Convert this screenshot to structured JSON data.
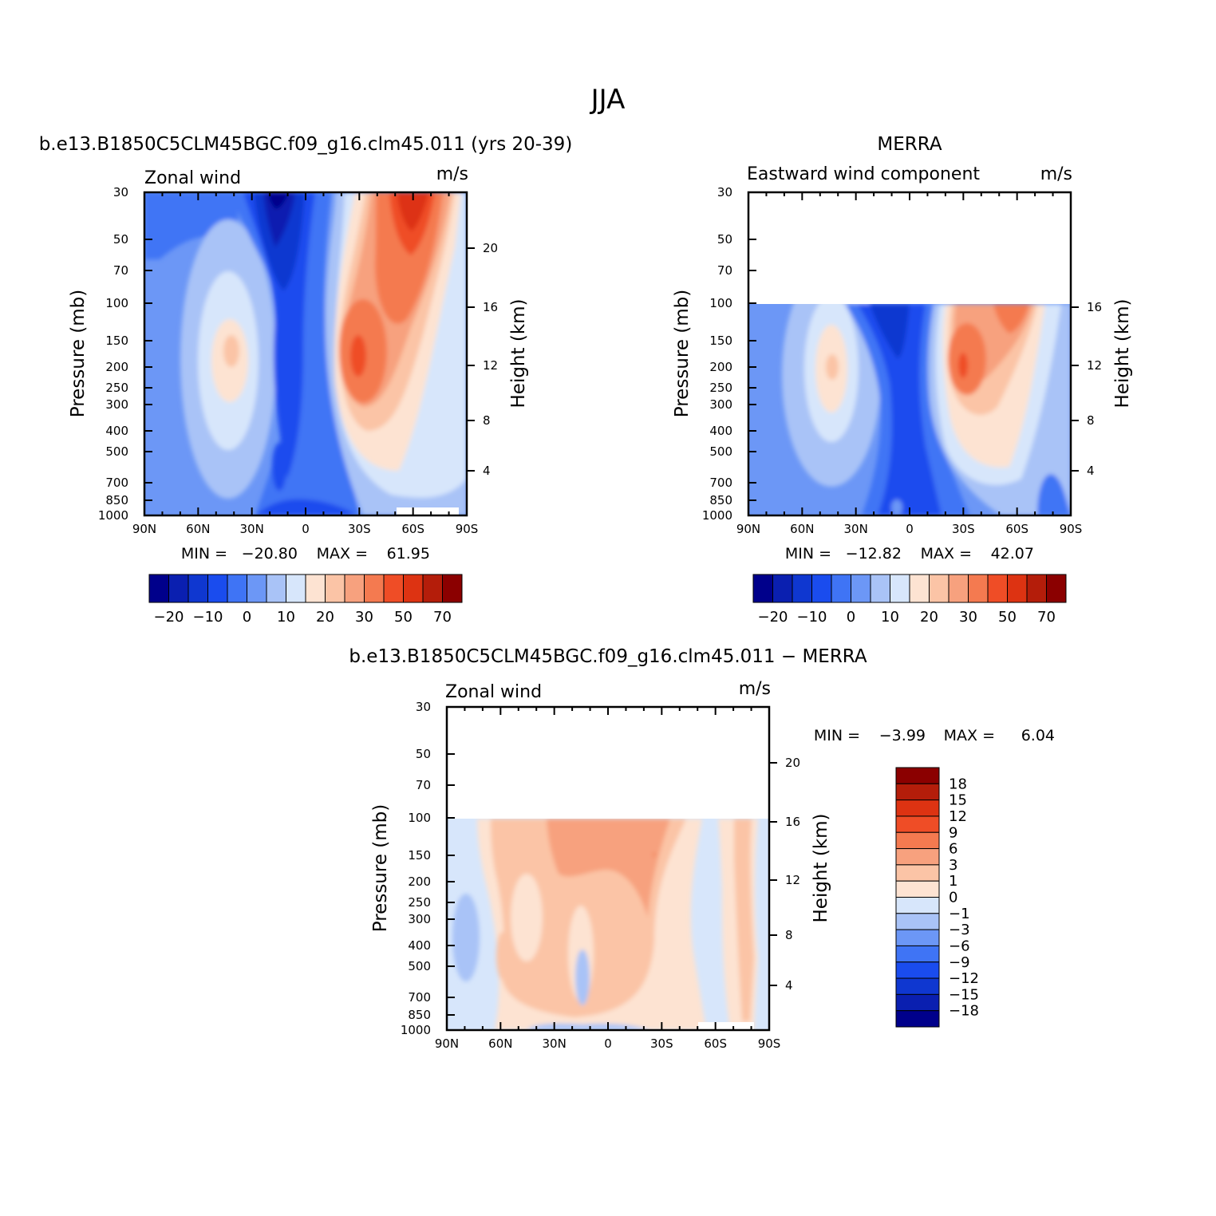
{
  "figure": {
    "main_title": "JJA"
  },
  "palette": [
    "#00008b",
    "#0a1fb0",
    "#0f37d0",
    "#1a4cee",
    "#3f74f5",
    "#6c97f6",
    "#a9c3f7",
    "#d7e6fb",
    "#fde3d2",
    "#fbc4a6",
    "#f7a17e",
    "#f47a50",
    "#ef4d26",
    "#dd3312",
    "#b41d0a",
    "#8b0000"
  ],
  "chart_data": [
    {
      "id": "model",
      "type": "heatmap",
      "title": "b.e13.B1850C5CLM45BGC.f09_g16.clm45.011 (yrs 20-39)",
      "left_label": "Zonal wind",
      "right_label": "m/s",
      "ylabel": "Pressure (mb)",
      "y2label": "Height (km)",
      "x_ticks": [
        "90N",
        "60N",
        "30N",
        "0",
        "30S",
        "60S",
        "90S"
      ],
      "y_ticks": [
        "30",
        "50",
        "70",
        "100",
        "150",
        "200",
        "250",
        "300",
        "400",
        "500",
        "700",
        "850",
        "1000"
      ],
      "y2_ticks": [
        "20",
        "16",
        "12",
        "8",
        "4"
      ],
      "min_label": "MIN =",
      "min_value": "−20.80",
      "max_label": "MAX =",
      "max_value": "61.95",
      "ylim": [
        1000,
        30
      ],
      "xlim": [
        "90N",
        "90S"
      ],
      "colorbar": {
        "orientation": "horizontal",
        "labels": [
          "−20",
          "−10",
          "0",
          "10",
          "20",
          "30",
          "50",
          "70"
        ]
      }
    },
    {
      "id": "obs",
      "type": "heatmap",
      "title": "MERRA",
      "left_label": "Eastward wind component",
      "right_label": "m/s",
      "ylabel": "Pressure (mb)",
      "y2label": "Height (km)",
      "x_ticks": [
        "90N",
        "60N",
        "30N",
        "0",
        "30S",
        "60S",
        "90S"
      ],
      "y_ticks": [
        "30",
        "50",
        "70",
        "100",
        "150",
        "200",
        "250",
        "300",
        "400",
        "500",
        "700",
        "850",
        "1000"
      ],
      "y2_ticks": [
        "16",
        "12",
        "8",
        "4"
      ],
      "min_label": "MIN =",
      "min_value": "−12.82",
      "max_label": "MAX =",
      "max_value": "42.07",
      "ylim": [
        1000,
        30
      ],
      "data_top_pressure": 100,
      "colorbar": {
        "orientation": "horizontal",
        "labels": [
          "−20",
          "−10",
          "0",
          "10",
          "20",
          "30",
          "50",
          "70"
        ]
      }
    },
    {
      "id": "diff",
      "type": "heatmap",
      "title": "b.e13.B1850C5CLM45BGC.f09_g16.clm45.011 − MERRA",
      "left_label": "Zonal wind",
      "right_label": "m/s",
      "ylabel": "Pressure (mb)",
      "y2label": "Height (km)",
      "x_ticks": [
        "90N",
        "60N",
        "30N",
        "0",
        "30S",
        "60S",
        "90S"
      ],
      "y_ticks": [
        "30",
        "50",
        "70",
        "100",
        "150",
        "200",
        "250",
        "300",
        "400",
        "500",
        "700",
        "850",
        "1000"
      ],
      "y2_ticks": [
        "20",
        "16",
        "12",
        "8",
        "4"
      ],
      "min_label": "MIN =",
      "min_value": "−3.99",
      "max_label": "MAX =",
      "max_value": "6.04",
      "ylim": [
        1000,
        30
      ],
      "data_top_pressure": 100,
      "colorbar": {
        "orientation": "vertical",
        "labels": [
          "18",
          "15",
          "12",
          "9",
          "6",
          "3",
          "1",
          "0",
          "−1",
          "−3",
          "−6",
          "−9",
          "−12",
          "−15",
          "−18"
        ],
        "colors": [
          "#8b0000",
          "#b41d0a",
          "#dd3312",
          "#ef4d26",
          "#f47a50",
          "#f7a17e",
          "#fbc4a6",
          "#fde3d2",
          "#d7e6fb",
          "#a9c3f7",
          "#6c97f6",
          "#3f74f5",
          "#1a4cee",
          "#0f37d0",
          "#0a1fb0",
          "#00008b"
        ]
      }
    }
  ]
}
